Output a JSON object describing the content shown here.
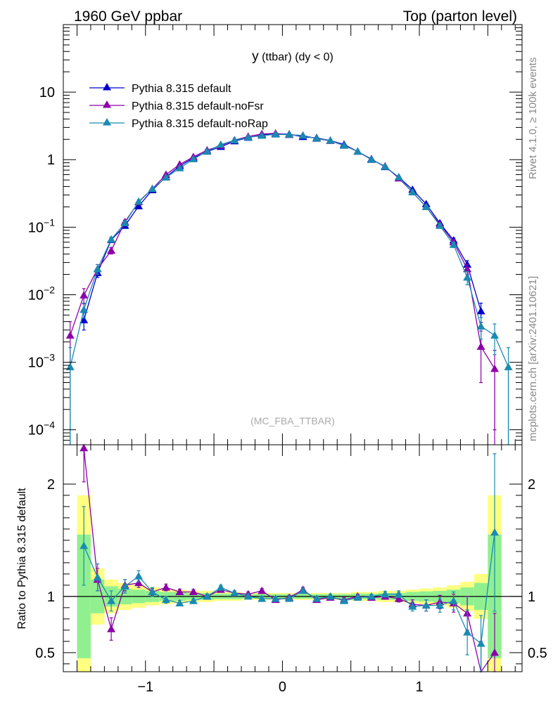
{
  "header": {
    "left": "1960 GeV ppbar",
    "right": "Top (parton level)"
  },
  "side_labels": {
    "rivet": "Rivet 4.1.0, ≥ 100k events",
    "mcplots": "mcplots.cern.ch [arXiv:2401.10621]"
  },
  "watermark": "(MC_FBA_TTBAR)",
  "colors": {
    "default": "#0000cc",
    "noFsr": "#8b00a8",
    "noRap": "#1a8bb0",
    "band_outer": "#ffff80",
    "band_inner": "#90f090"
  },
  "chart_data": [
    {
      "type": "line",
      "title": "y (ttbar) (dy < 0)",
      "title_main": "y",
      "title_rest": " (ttbar) (dy < 0)",
      "yscale": "log",
      "xlim": [
        -1.6,
        1.75
      ],
      "ylim": [
        6e-05,
        100
      ],
      "ytick_values": [
        0.0001,
        0.001,
        0.01,
        0.1,
        1,
        10
      ],
      "ytick_labels": [
        {
          "base": "10",
          "exp": "−4"
        },
        {
          "base": "10",
          "exp": "−3"
        },
        {
          "base": "10",
          "exp": "−2"
        },
        {
          "base": "10",
          "exp": "−1"
        },
        {
          "base": "1",
          "exp": ""
        },
        {
          "base": "10",
          "exp": ""
        }
      ],
      "x": [
        -1.55,
        -1.45,
        -1.35,
        -1.25,
        -1.15,
        -1.05,
        -0.95,
        -0.85,
        -0.75,
        -0.65,
        -0.55,
        -0.45,
        -0.35,
        -0.25,
        -0.15,
        -0.05,
        0.05,
        0.15,
        0.25,
        0.35,
        0.45,
        0.55,
        0.65,
        0.75,
        0.85,
        0.95,
        1.05,
        1.15,
        1.25,
        1.35,
        1.45,
        1.55,
        1.65
      ],
      "series": [
        {
          "name": "Pythia 8.315 default",
          "key": "default",
          "values": [
            null,
            0.0042,
            0.021,
            0.065,
            0.105,
            0.205,
            0.355,
            0.555,
            0.805,
            1.06,
            1.32,
            1.55,
            1.88,
            2.12,
            2.32,
            2.42,
            2.38,
            2.18,
            2.1,
            1.92,
            1.68,
            1.32,
            1.02,
            0.78,
            0.55,
            0.36,
            0.22,
            0.115,
            0.064,
            0.028,
            0.0057,
            null,
            null
          ],
          "errors": [
            0,
            0.0012,
            0.003,
            0.005,
            0.006,
            0.01,
            0.012,
            0.015,
            0.02,
            0.025,
            0.03,
            0.03,
            0.035,
            0.04,
            0.04,
            0.04,
            0.04,
            0.04,
            0.04,
            0.035,
            0.03,
            0.03,
            0.025,
            0.02,
            0.015,
            0.012,
            0.01,
            0.006,
            0.005,
            0.004,
            0.0018,
            0,
            0
          ]
        },
        {
          "name": "Pythia 8.315 default-noFsr",
          "key": "noFsr",
          "values": [
            0.0025,
            0.0098,
            0.024,
            0.045,
            0.12,
            0.235,
            0.37,
            0.6,
            0.85,
            1.1,
            1.38,
            1.62,
            1.95,
            2.2,
            2.4,
            2.45,
            2.33,
            2.28,
            2.05,
            1.9,
            1.62,
            1.32,
            1.0,
            0.8,
            0.53,
            0.33,
            0.2,
            0.11,
            0.06,
            0.024,
            0.0017,
            0.0008,
            null
          ],
          "errors": [
            0.0015,
            0.0025,
            0.004,
            0.005,
            0.007,
            0.01,
            0.012,
            0.015,
            0.02,
            0.025,
            0.03,
            0.03,
            0.035,
            0.04,
            0.04,
            0.04,
            0.04,
            0.04,
            0.04,
            0.035,
            0.03,
            0.03,
            0.025,
            0.02,
            0.015,
            0.012,
            0.01,
            0.006,
            0.005,
            0.004,
            0.0012,
            0.0007,
            0
          ]
        },
        {
          "name": "Pythia 8.315 default-noRap",
          "key": "noRap",
          "values": [
            0.00085,
            0.006,
            0.024,
            0.066,
            0.115,
            0.24,
            0.37,
            0.545,
            0.75,
            1.02,
            1.33,
            1.67,
            1.94,
            2.13,
            2.27,
            2.37,
            2.35,
            2.27,
            2.06,
            1.92,
            1.62,
            1.32,
            1.0,
            0.79,
            0.55,
            0.33,
            0.2,
            0.105,
            0.055,
            0.018,
            0.0034,
            0.0025,
            0.00085
          ],
          "errors": [
            0.0008,
            0.0015,
            0.004,
            0.005,
            0.007,
            0.01,
            0.012,
            0.015,
            0.02,
            0.025,
            0.03,
            0.03,
            0.035,
            0.04,
            0.04,
            0.04,
            0.04,
            0.04,
            0.04,
            0.035,
            0.03,
            0.03,
            0.025,
            0.02,
            0.015,
            0.012,
            0.01,
            0.006,
            0.005,
            0.004,
            0.0012,
            0.0012,
            0.0008
          ]
        }
      ]
    },
    {
      "type": "line",
      "ylabel": "Ratio to Pythia 8.315 default",
      "xlim": [
        -1.6,
        1.75
      ],
      "ylim": [
        0.33,
        2.35
      ],
      "xtick_values": [
        -1,
        0,
        1
      ],
      "xtick_labels": [
        "−1",
        "0",
        "1"
      ],
      "ytick_values": [
        0.5,
        1,
        2
      ],
      "ytick_labels": [
        "0.5",
        "1",
        "2"
      ],
      "reference_line": 1,
      "band_edges": [
        -1.5,
        -1.4,
        -1.3,
        -1.2,
        -1.1,
        -1.0,
        -0.9,
        -0.8,
        -0.7,
        -0.6,
        -0.5,
        -0.4,
        -0.3,
        -0.2,
        -0.1,
        0.0,
        0.1,
        0.2,
        0.3,
        0.4,
        0.5,
        0.6,
        0.7,
        0.8,
        0.9,
        1.0,
        1.1,
        1.2,
        1.3,
        1.4,
        1.5,
        1.6
      ],
      "band_outer_halfwidth": [
        0.9,
        0.25,
        0.15,
        0.12,
        0.1,
        0.08,
        0.07,
        0.06,
        0.05,
        0.05,
        0.04,
        0.04,
        0.03,
        0.03,
        0.03,
        0.03,
        0.03,
        0.03,
        0.03,
        0.03,
        0.04,
        0.04,
        0.05,
        0.05,
        0.06,
        0.07,
        0.08,
        0.1,
        0.13,
        0.2,
        0.9
      ],
      "band_inner_halfwidth": [
        0.55,
        0.15,
        0.09,
        0.07,
        0.06,
        0.05,
        0.04,
        0.04,
        0.03,
        0.03,
        0.025,
        0.025,
        0.02,
        0.02,
        0.02,
        0.02,
        0.02,
        0.02,
        0.02,
        0.02,
        0.025,
        0.025,
        0.03,
        0.03,
        0.04,
        0.045,
        0.05,
        0.06,
        0.08,
        0.12,
        0.55
      ],
      "x": [
        -1.55,
        -1.45,
        -1.35,
        -1.25,
        -1.15,
        -1.05,
        -0.95,
        -0.85,
        -0.75,
        -0.65,
        -0.55,
        -0.45,
        -0.35,
        -0.25,
        -0.15,
        -0.05,
        0.05,
        0.15,
        0.25,
        0.35,
        0.45,
        0.55,
        0.65,
        0.75,
        0.85,
        0.95,
        1.05,
        1.15,
        1.25,
        1.35,
        1.45,
        1.55,
        1.65
      ],
      "series": [
        {
          "name": "Pythia 8.315 default-noFsr",
          "key": "noFsr",
          "values": [
            null,
            2.32,
            1.15,
            0.71,
            1.1,
            1.12,
            1.04,
            1.08,
            1.04,
            1.04,
            1.0,
            1.06,
            1.03,
            1.02,
            1.05,
            0.97,
            0.99,
            1.06,
            0.97,
            0.99,
            0.97,
            1.0,
            0.99,
            1.0,
            0.98,
            0.93,
            0.92,
            0.95,
            0.94,
            0.85,
            0.3,
            0.5,
            null
          ],
          "errors": [
            0,
            0.3,
            0.1,
            0.1,
            0.05,
            0.04,
            0.03,
            0.03,
            0.025,
            0.02,
            0.02,
            0.02,
            0.02,
            0.02,
            0.02,
            0.02,
            0.02,
            0.02,
            0.02,
            0.02,
            0.02,
            0.02,
            0.02,
            0.025,
            0.03,
            0.04,
            0.05,
            0.06,
            0.08,
            0.15,
            0.3,
            0.35,
            0
          ]
        },
        {
          "name": "Pythia 8.315 default-noRap",
          "key": "noRap",
          "values": [
            null,
            1.45,
            1.17,
            0.96,
            1.09,
            1.18,
            1.04,
            0.97,
            0.94,
            0.96,
            1.0,
            1.08,
            1.03,
            1.0,
            0.98,
            0.98,
            0.98,
            1.05,
            0.98,
            1.0,
            0.96,
            0.99,
            1.0,
            1.02,
            1.02,
            0.91,
            0.92,
            0.92,
            0.96,
            0.68,
            0.58,
            1.57,
            null
          ],
          "errors": [
            0,
            0.35,
            0.12,
            0.09,
            0.06,
            0.05,
            0.04,
            0.03,
            0.025,
            0.02,
            0.02,
            0.02,
            0.02,
            0.02,
            0.02,
            0.02,
            0.02,
            0.02,
            0.02,
            0.02,
            0.02,
            0.02,
            0.02,
            0.025,
            0.03,
            0.04,
            0.05,
            0.06,
            0.08,
            0.2,
            0.25,
            0.7,
            0
          ]
        }
      ]
    }
  ]
}
